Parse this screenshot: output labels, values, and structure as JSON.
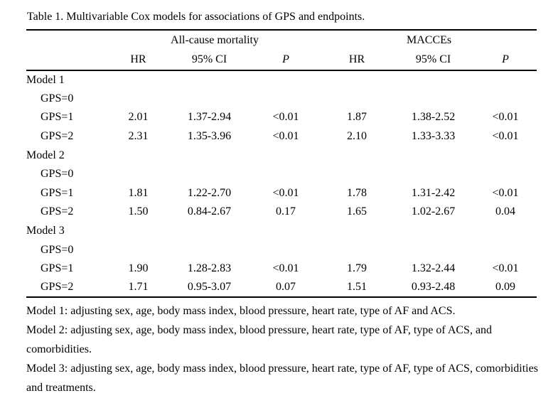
{
  "colors": {
    "background": "#ffffff",
    "text": "#000000",
    "rule": "#000000"
  },
  "title": "Table 1. Multivariable Cox models for associations of GPS and endpoints.",
  "table": {
    "group_headers": [
      {
        "label": "All-cause mortality"
      },
      {
        "label": "MACCEs"
      }
    ],
    "col_headers": [
      "HR",
      "95% CI",
      "P",
      "HR",
      "95% CI",
      "P"
    ],
    "rows": [
      {
        "label": "Model 1",
        "indent": false,
        "cells": [
          "",
          "",
          "",
          "",
          "",
          ""
        ]
      },
      {
        "label": "GPS=0",
        "indent": true,
        "cells": [
          "",
          "",
          "",
          "",
          "",
          ""
        ]
      },
      {
        "label": "GPS=1",
        "indent": true,
        "cells": [
          "2.01",
          "1.37-2.94",
          "<0.01",
          "1.87",
          "1.38-2.52",
          "<0.01"
        ]
      },
      {
        "label": "GPS=2",
        "indent": true,
        "cells": [
          "2.31",
          "1.35-3.96",
          "<0.01",
          "2.10",
          "1.33-3.33",
          "<0.01"
        ]
      },
      {
        "label": "Model 2",
        "indent": false,
        "cells": [
          "",
          "",
          "",
          "",
          "",
          ""
        ]
      },
      {
        "label": "GPS=0",
        "indent": true,
        "cells": [
          "",
          "",
          "",
          "",
          "",
          ""
        ]
      },
      {
        "label": "GPS=1",
        "indent": true,
        "cells": [
          "1.81",
          "1.22-2.70",
          "<0.01",
          "1.78",
          "1.31-2.42",
          "<0.01"
        ]
      },
      {
        "label": "GPS=2",
        "indent": true,
        "cells": [
          "1.50",
          "0.84-2.67",
          "0.17",
          "1.65",
          "1.02-2.67",
          "0.04"
        ]
      },
      {
        "label": "Model 3",
        "indent": false,
        "cells": [
          "",
          "",
          "",
          "",
          "",
          ""
        ]
      },
      {
        "label": "GPS=0",
        "indent": true,
        "cells": [
          "",
          "",
          "",
          "",
          "",
          ""
        ]
      },
      {
        "label": "GPS=1",
        "indent": true,
        "cells": [
          "1.90",
          "1.28-2.83",
          "<0.01",
          "1.79",
          "1.32-2.44",
          "<0.01"
        ]
      },
      {
        "label": "GPS=2",
        "indent": true,
        "cells": [
          "1.71",
          "0.95-3.07",
          "0.07",
          "1.51",
          "0.93-2.48",
          "0.09"
        ]
      }
    ]
  },
  "footnotes": [
    "Model 1: adjusting sex, age, body mass index, blood pressure, heart rate, type of AF and ACS.",
    "Model 2: adjusting sex, age, body mass index, blood pressure, heart rate, type of AF, type of ACS, and comorbidities.",
    "Model 3: adjusting sex, age, body mass index, blood pressure, heart rate, type of AF, type of ACS, comorbidities and treatments."
  ]
}
